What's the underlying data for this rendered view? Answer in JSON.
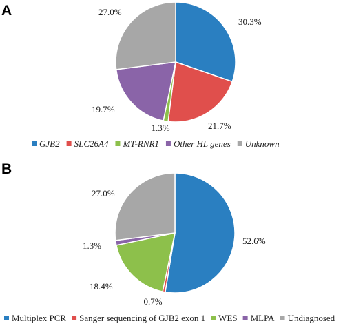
{
  "chart_data": [
    {
      "type": "pie",
      "panel_label": "A",
      "slices": [
        {
          "name": "GJB2",
          "value": 30.3,
          "label": "30.3%",
          "color": "#2a7fc1"
        },
        {
          "name": "SLC26A4",
          "value": 21.7,
          "label": "21.7%",
          "color": "#e04f4c"
        },
        {
          "name": "MT-RNR1",
          "value": 1.3,
          "label": "1.3%",
          "color": "#8dc04b"
        },
        {
          "name": "Other HL genes",
          "value": 19.7,
          "label": "19.7%",
          "color": "#8a64a8"
        },
        {
          "name": "Unknown",
          "value": 27.0,
          "label": "27.0%",
          "color": "#a7a7a7"
        }
      ],
      "legend_italic": true,
      "legend_position": "bottom"
    },
    {
      "type": "pie",
      "panel_label": "B",
      "slices": [
        {
          "name": "Multiplex PCR",
          "value": 52.6,
          "label": "52.6%",
          "color": "#2a7fc1"
        },
        {
          "name": "Sanger sequencing of GJB2 exon 1",
          "value": 0.7,
          "label": "0.7%",
          "color": "#e04f4c"
        },
        {
          "name": "WES",
          "value": 18.4,
          "label": "18.4%",
          "color": "#8dc04b"
        },
        {
          "name": "MLPA",
          "value": 1.3,
          "label": "1.3%",
          "color": "#8a64a8"
        },
        {
          "name": "Undiagnosed",
          "value": 27.0,
          "label": "27.0%",
          "color": "#a7a7a7"
        }
      ],
      "legend_italic": false,
      "legend_position": "bottom"
    }
  ]
}
